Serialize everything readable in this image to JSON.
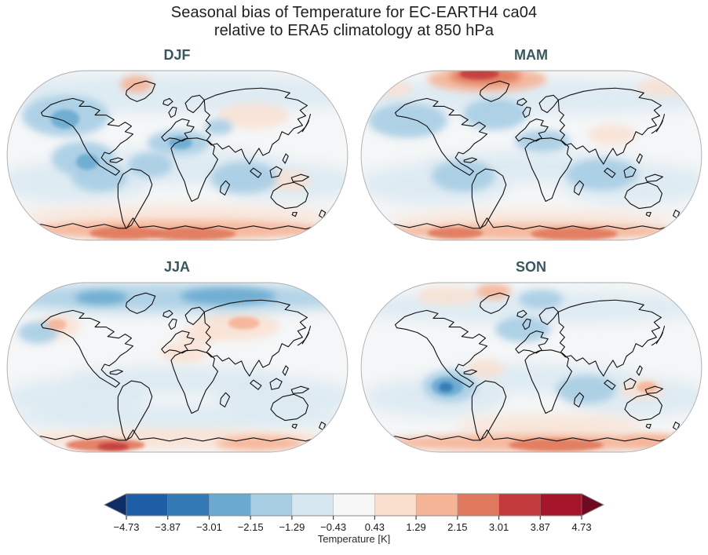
{
  "title": {
    "line1": "Seasonal bias of Temperature for EC-EARTH4 ca04",
    "line2": "relative to ERA5 climatology at 850 hPa"
  },
  "colors": {
    "figure_title": "#1f1f1f",
    "panel_title": "#39575e",
    "map_base": "#f4f6f7",
    "map_border": "#b3b3b3",
    "coastline": "#111111",
    "tick_text": "#1a1a1a",
    "colorbar_outline": "#8a8a8a"
  },
  "chart_data": {
    "type": "heatmap",
    "subtype": "filled-contour seasonal temperature bias maps, Robinson projection, 2x2 grid",
    "variable": "Temperature bias at 850 hPa (model minus ERA5 climatology)",
    "palette": [
      "#0d2d66",
      "#1e5ea6",
      "#3379b5",
      "#6aaad0",
      "#a8cee4",
      "#d7e7f1",
      "#f6f7f6",
      "#fbdfce",
      "#f5b496",
      "#e0795d",
      "#c23a3c",
      "#a41529",
      "#6e0a21"
    ],
    "colorbar": {
      "label": "Temperature [K]",
      "ticks": [
        "−4.73",
        "−3.87",
        "−3.01",
        "−2.15",
        "−1.29",
        "−0.43",
        "0.43",
        "1.29",
        "2.15",
        "3.01",
        "3.87",
        "4.73"
      ],
      "tick_values": [
        -4.73,
        -3.87,
        -3.01,
        -2.15,
        -1.29,
        -0.43,
        0.43,
        1.29,
        2.15,
        3.01,
        3.87,
        4.73
      ],
      "extend": "both",
      "orientation": "horizontal"
    },
    "panels": [
      {
        "season": "DJF",
        "bias_regions": [
          "Cool bias (−1 to −2 K) over NW North America and N Pacific",
          "Weak cool bias over subtropical oceans, tropical Atlantic and Sahara",
          "Warm bias (~+1.5 K) over Greenland",
          "Weak warm bias over central Asia and Australia",
          "Warm bias (+2 to +3 K) over Antarctica"
        ],
        "blobs": [
          [
            216,
            36,
            250,
            24,
            5,
            8
          ],
          [
            216,
            128,
            140,
            22,
            5,
            8
          ],
          [
            86,
            148,
            95,
            26,
            5,
            8
          ],
          [
            350,
            148,
            92,
            24,
            5,
            8
          ],
          [
            75,
            64,
            55,
            26,
            4,
            6
          ],
          [
            97,
            118,
            40,
            22,
            4,
            5
          ],
          [
            118,
            142,
            35,
            18,
            4,
            5
          ],
          [
            182,
            126,
            28,
            16,
            4,
            5
          ],
          [
            218,
            98,
            40,
            16,
            4,
            5
          ],
          [
            268,
            78,
            18,
            10,
            4,
            4
          ],
          [
            300,
            142,
            42,
            20,
            4,
            5
          ],
          [
            74,
            68,
            18,
            12,
            3,
            3
          ],
          [
            102,
            122,
            14,
            10,
            3,
            3
          ],
          [
            220,
            98,
            15,
            8,
            3,
            3
          ],
          [
            312,
            64,
            45,
            16,
            7,
            6
          ],
          [
            358,
            146,
            26,
            13,
            7,
            4
          ],
          [
            216,
            192,
            200,
            14,
            7,
            7
          ],
          [
            164,
            24,
            20,
            11,
            8,
            4
          ],
          [
            216,
            208,
            195,
            12,
            8,
            5
          ],
          [
            150,
            212,
            45,
            8,
            9,
            3
          ],
          [
            235,
            213,
            55,
            8,
            9,
            3
          ]
        ]
      },
      {
        "season": "MAM",
        "bias_regions": [
          "Strong warm bias (+3 to +4 K) over Canadian Arctic and N Greenland",
          "Widespread weak cool bias over mid-latitude oceans",
          "Weak warm bias over India / S Asia and NE Siberia",
          "Warm bias (+2 K) along Antarctic coast"
        ],
        "blobs": [
          [
            216,
            40,
            250,
            22,
            5,
            8
          ],
          [
            216,
            128,
            140,
            20,
            5,
            8
          ],
          [
            95,
            150,
            95,
            26,
            5,
            8
          ],
          [
            345,
            150,
            95,
            26,
            5,
            8
          ],
          [
            60,
            70,
            50,
            22,
            4,
            6
          ],
          [
            170,
            62,
            40,
            20,
            4,
            6
          ],
          [
            130,
            140,
            40,
            20,
            4,
            6
          ],
          [
            305,
            138,
            45,
            20,
            4,
            6
          ],
          [
            230,
            96,
            35,
            14,
            4,
            6
          ],
          [
            385,
            28,
            35,
            12,
            7,
            5
          ],
          [
            318,
            88,
            30,
            13,
            7,
            5
          ],
          [
            216,
            196,
            180,
            12,
            7,
            7
          ],
          [
            40,
            30,
            25,
            10,
            7,
            5
          ],
          [
            160,
            18,
            75,
            16,
            8,
            6
          ],
          [
            216,
            210,
            190,
            10,
            8,
            5
          ],
          [
            158,
            14,
            45,
            11,
            9,
            4
          ],
          [
            270,
            213,
            55,
            8,
            9,
            3
          ],
          [
            120,
            212,
            35,
            7,
            9,
            3
          ],
          [
            150,
            11,
            25,
            7,
            10,
            3
          ]
        ]
      },
      {
        "season": "JJA",
        "bias_regions": [
          "Cool bias (−1 to −2 K) across Arctic and Siberia",
          "Warm bias (~+1 K) over western US, Mediterranean and central Asia",
          "Weak cool bias over tropical and southern oceans",
          "Strong warm bias (+2 to +3 K) over Antarctica"
        ],
        "blobs": [
          [
            216,
            26,
            240,
            18,
            4,
            7
          ],
          [
            40,
            70,
            25,
            14,
            4,
            4
          ],
          [
            280,
            24,
            60,
            11,
            3,
            4
          ],
          [
            120,
            26,
            33,
            9,
            3,
            4
          ],
          [
            216,
            130,
            140,
            18,
            5,
            8
          ],
          [
            90,
            152,
            90,
            24,
            5,
            8
          ],
          [
            350,
            152,
            90,
            24,
            5,
            8
          ],
          [
            216,
            178,
            210,
            16,
            5,
            8
          ],
          [
            66,
            62,
            26,
            15,
            7,
            4
          ],
          [
            290,
            62,
            55,
            18,
            7,
            6
          ],
          [
            244,
            74,
            28,
            10,
            7,
            4
          ],
          [
            225,
            95,
            30,
            14,
            7,
            6
          ],
          [
            216,
            204,
            200,
            13,
            7,
            6
          ],
          [
            64,
            60,
            12,
            7,
            8,
            2.5
          ],
          [
            300,
            58,
            20,
            8,
            8,
            3
          ],
          [
            320,
            210,
            55,
            9,
            8,
            4
          ],
          [
            125,
            212,
            50,
            8,
            9,
            3
          ],
          [
            135,
            214,
            20,
            5,
            10,
            2.5
          ]
        ]
      },
      {
        "season": "SON",
        "bias_regions": [
          "Warm bias over Greenland and NE Canada",
          "Cool bias over Scandinavia / N Europe",
          "Strong cool bias (−2 to −3 K) over SE Pacific",
          "Warm bias over NE Brazil and Australia",
          "Warm bias (+2 K) over Antarctica"
        ],
        "blobs": [
          [
            216,
            38,
            230,
            20,
            5,
            8
          ],
          [
            216,
            128,
            135,
            18,
            5,
            8
          ],
          [
            95,
            152,
            90,
            24,
            5,
            8
          ],
          [
            350,
            152,
            90,
            24,
            5,
            8
          ],
          [
            228,
            28,
            28,
            12,
            4,
            5
          ],
          [
            205,
            66,
            35,
            16,
            4,
            6
          ],
          [
            113,
            138,
            34,
            20,
            4,
            5
          ],
          [
            285,
            142,
            38,
            18,
            4,
            5
          ],
          [
            110,
            138,
            20,
            12,
            3,
            3
          ],
          [
            108,
            139,
            9,
            6,
            2,
            2
          ],
          [
            110,
            24,
            38,
            12,
            7,
            5
          ],
          [
            158,
            116,
            24,
            12,
            7,
            4
          ],
          [
            356,
            142,
            28,
            13,
            7,
            4
          ],
          [
            240,
            188,
            120,
            14,
            7,
            7
          ],
          [
            168,
            18,
            22,
            10,
            8,
            4
          ],
          [
            362,
            139,
            13,
            7,
            8,
            2.5
          ],
          [
            216,
            209,
            190,
            11,
            8,
            5
          ],
          [
            370,
            206,
            40,
            8,
            8,
            4
          ],
          [
            247,
            212,
            60,
            8,
            9,
            3
          ]
        ]
      }
    ]
  }
}
